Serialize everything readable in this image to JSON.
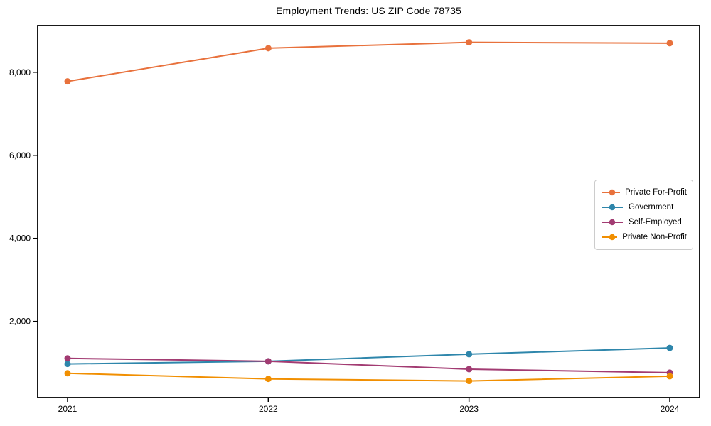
{
  "chart_data": {
    "type": "line",
    "title": "Employment Trends: US ZIP Code 78735",
    "x_categories": [
      "2021",
      "2022",
      "2023",
      "2024"
    ],
    "series": [
      {
        "name": "Private For-Profit",
        "color": "#E8713C",
        "values": [
          7780,
          8580,
          8720,
          8700
        ]
      },
      {
        "name": "Government",
        "color": "#2E86AB",
        "values": [
          975,
          1040,
          1210,
          1360
        ]
      },
      {
        "name": "Self-Employed",
        "color": "#A23B72",
        "values": [
          1110,
          1040,
          850,
          765
        ]
      },
      {
        "name": "Private Non-Profit",
        "color": "#F18F01",
        "values": [
          750,
          615,
          565,
          680
        ]
      }
    ],
    "yticks": {
      "values": [
        2000,
        4000,
        6000,
        8000
      ],
      "labels": [
        "2,000",
        "4,000",
        "6,000",
        "8,000"
      ]
    },
    "ylim": [
      165,
      9125
    ],
    "grid": false,
    "legend_position": "center-right",
    "marker": "circle",
    "xlabel": "",
    "ylabel": ""
  }
}
